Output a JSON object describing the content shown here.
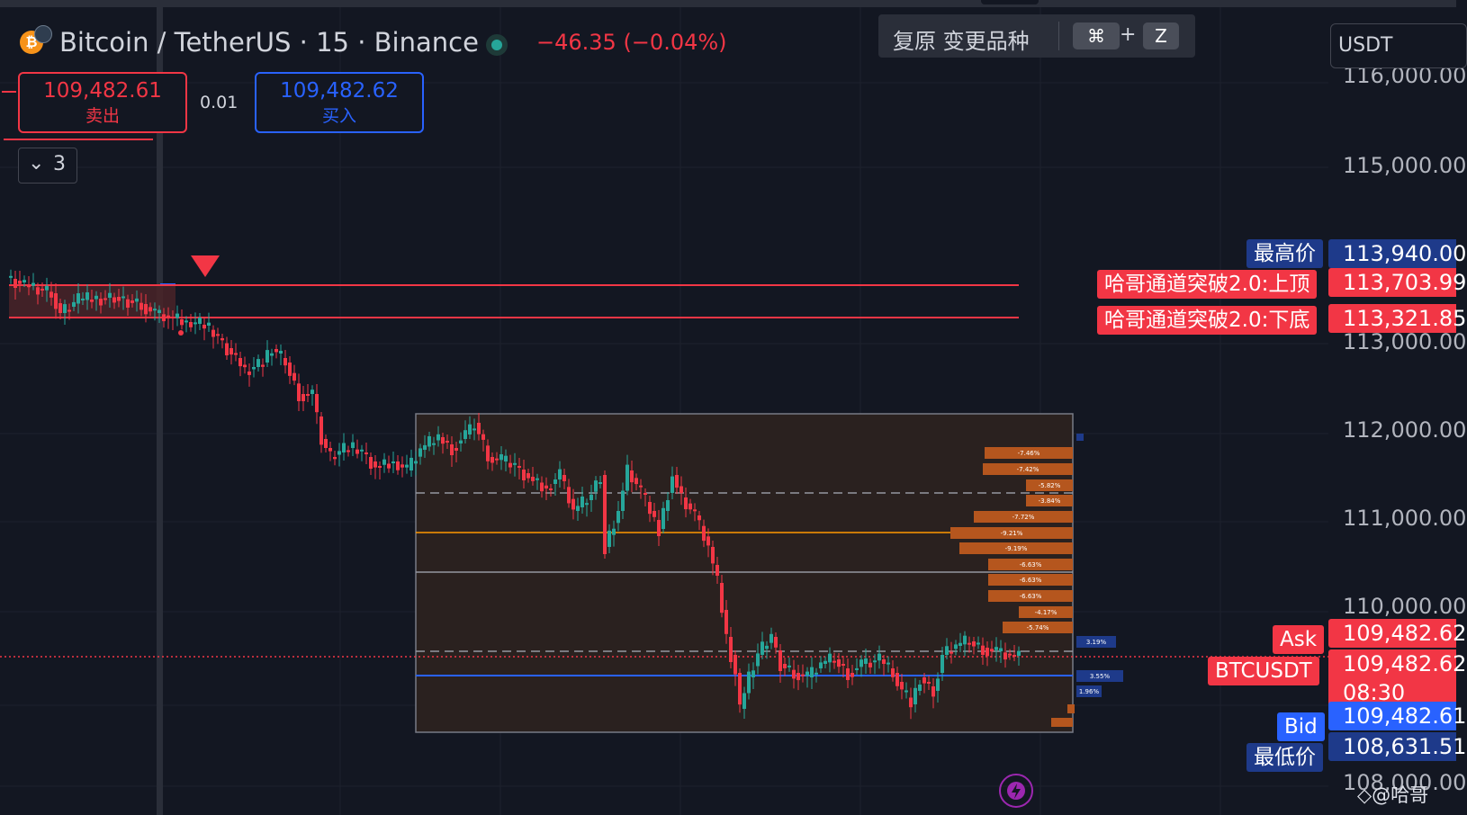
{
  "symbol": {
    "title": "Bitcoin / TetherUS · 15 · Binance",
    "logo_glyph": "₿",
    "change": "−46.35 (−0.04%)"
  },
  "undo_bar": {
    "label": "复原 变更品种",
    "key1": "⌘",
    "plus": "+",
    "key2": "Z"
  },
  "currency": "USDT",
  "trade": {
    "sell_price": "109,482.61",
    "sell_label": "卖出",
    "spread": "0.01",
    "buy_price": "109,482.62",
    "buy_label": "买入"
  },
  "indicators_toggle": {
    "count": "3",
    "icon": "chevron-down"
  },
  "price_scale": {
    "ticks": [
      "116,000.00",
      "115,000.00",
      "113,000.00",
      "112,000.00",
      "111,000.00",
      "110,000.00",
      "108,000.00"
    ]
  },
  "labels": {
    "high_label": "最高价",
    "high_value": "113,940.00",
    "upper_label": "哈哥通道突破2.0:上顶",
    "upper_value": "113,703.99",
    "lower_label": "哈哥通道突破2.0:下底",
    "lower_value": "113,321.85",
    "ask_label": "Ask",
    "ask_value": "109,482.62",
    "last_label": "BTCUSDT",
    "last_value": "109,482.62",
    "countdown": "08:30",
    "bid_label": "Bid",
    "bid_value": "109,482.61",
    "low_label": "最低价",
    "low_value": "108,631.51"
  },
  "profile_bars": [
    "-7.46%",
    "-7.42%",
    "-5.82%",
    "-3.84%",
    "-7.72%",
    "-9.21%",
    "-9.19%",
    "-6.63%",
    "-6.63%",
    "-6.63%",
    "-4.17%",
    "-5.74%"
  ],
  "profile_blue": [
    "3.19%",
    "3.55%",
    "1.96%"
  ],
  "watermark": "@哈哥",
  "colors": {
    "up": "#26a69a",
    "down": "#f23645",
    "accent": "#2962ff",
    "background": "#131722"
  }
}
